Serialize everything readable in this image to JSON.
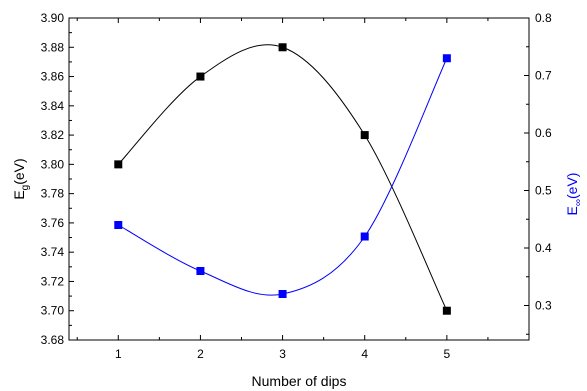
{
  "chart_data": {
    "type": "line",
    "xlabel": "Number of dips",
    "x": [
      1,
      2,
      3,
      4,
      5
    ],
    "xlim": [
      0.4,
      6.0
    ],
    "xticks": [
      1,
      2,
      3,
      4,
      5
    ],
    "grid": false,
    "left_axis": {
      "label_main": "E",
      "label_sub": "g",
      "label_unit": "(eV)",
      "label_color": "#000000",
      "ylim": [
        3.68,
        3.9
      ],
      "ticks": [
        "3.68",
        "3.70",
        "3.72",
        "3.74",
        "3.76",
        "3.78",
        "3.80",
        "3.82",
        "3.84",
        "3.86",
        "3.88",
        "3.90"
      ]
    },
    "right_axis": {
      "label_main": "E",
      "label_sub": "∞",
      "label_unit": "(eV)",
      "label_color": "#0000ff",
      "ylim": [
        0.24,
        0.8
      ],
      "ticks": [
        "0.3",
        "0.4",
        "0.5",
        "0.6",
        "0.7",
        "0.8"
      ]
    },
    "series": [
      {
        "axis": "left",
        "color": "#000000",
        "marker": "square",
        "values": [
          3.8,
          3.86,
          3.88,
          3.82,
          3.7
        ]
      },
      {
        "axis": "right",
        "color": "#0000ff",
        "marker": "square",
        "values": [
          0.44,
          0.36,
          0.32,
          0.42,
          0.73
        ]
      }
    ]
  }
}
